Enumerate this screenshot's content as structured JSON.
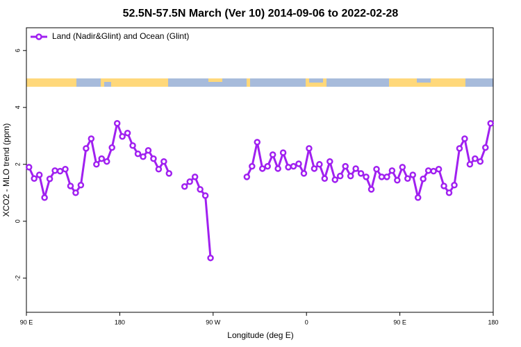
{
  "chart_data": {
    "type": "line",
    "title": "52.5N-57.5N March (Ver 10)   2014-09-06 to 2022-02-28",
    "xlabel": "Longitude (deg E)",
    "ylabel": "XCO2 - MLO trend (ppm)",
    "xlim": [
      90,
      540
    ],
    "ylim": [
      -3.2,
      6.8
    ],
    "xticks": [
      {
        "value": 90,
        "label": "90 E"
      },
      180,
      {
        "value": 270,
        "label": "90 W"
      },
      {
        "value": 360,
        "label": "0"
      },
      {
        "value": 450,
        "label": "90 E"
      },
      {
        "value": 540,
        "label": "180"
      }
    ],
    "yticks": [
      -2,
      0,
      2,
      4,
      6
    ],
    "legend": "top-left",
    "x": [
      92.5,
      97.5,
      102.5,
      107.5,
      112.5,
      117.5,
      122.5,
      127.5,
      132.5,
      137.5,
      142.5,
      147.5,
      152.5,
      157.5,
      162.5,
      167.5,
      172.5,
      177.5,
      182.5,
      187.5,
      192.5,
      197.5,
      202.5,
      207.5,
      212.5,
      217.5,
      222.5,
      227.5,
      232.5,
      237.5,
      242.5,
      247.5,
      252.5,
      257.5,
      262.5,
      267.5,
      272.5,
      277.5,
      282.5,
      287.5,
      292.5,
      297.5,
      302.5,
      307.5,
      312.5,
      317.5,
      322.5,
      327.5,
      332.5,
      337.5,
      342.5,
      347.5,
      352.5,
      357.5,
      362.5,
      367.5,
      372.5,
      377.5,
      382.5,
      387.5,
      392.5,
      397.5,
      402.5,
      407.5,
      412.5,
      417.5,
      422.5,
      427.5,
      432.5,
      437.5,
      442.5,
      447.5,
      452.5,
      457.5,
      462.5,
      467.5,
      472.5,
      477.5,
      482.5,
      487.5,
      492.5,
      497.5,
      502.5,
      507.5,
      512.5,
      517.5,
      522.5,
      527.5,
      532.5,
      537.5
    ],
    "series": [
      {
        "name": "Land (Nadir&Glint) and Ocean (Glint)",
        "color": "#a020f0",
        "values": [
          1.9,
          1.5,
          1.63,
          0.83,
          1.49,
          1.78,
          1.76,
          1.83,
          1.24,
          1.0,
          1.27,
          2.56,
          2.9,
          2.0,
          2.2,
          2.1,
          2.59,
          3.44,
          2.98,
          3.1,
          2.66,
          2.37,
          2.27,
          2.49,
          2.2,
          1.83,
          2.1,
          1.68,
          null,
          null,
          1.22,
          1.39,
          1.56,
          1.12,
          0.9,
          -1.29,
          null,
          null,
          null,
          null,
          null,
          null,
          1.56,
          1.93,
          2.78,
          1.85,
          1.93,
          2.34,
          1.85,
          2.41,
          1.9,
          1.93,
          2.02,
          1.68,
          2.56,
          1.85,
          2.0,
          1.5,
          2.1,
          1.46,
          1.59,
          1.93,
          1.59,
          1.85,
          1.68,
          1.56,
          1.12,
          1.83,
          1.56,
          1.56,
          1.78,
          1.44,
          1.9,
          1.5,
          1.63,
          0.83,
          1.49,
          1.78,
          1.76,
          1.83,
          1.24,
          1.0,
          1.27,
          2.56,
          2.9,
          2.0,
          2.2,
          2.1,
          2.59,
          3.44
        ]
      }
    ]
  }
}
